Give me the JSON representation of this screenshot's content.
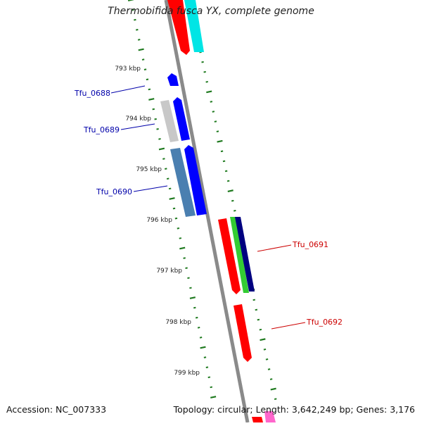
{
  "title": "Thermobifida fusca YX, complete genome",
  "footer": {
    "accession": "Accession: NC_007333",
    "topology": "Topology: circular; Length: 3,642,249 bp; Genes: 3,176"
  },
  "scale_labels": [
    "793 kbp",
    "794 kbp",
    "795 kbp",
    "796 kbp",
    "797 kbp",
    "798 kbp",
    "799 kbp"
  ],
  "gene_labels": [
    {
      "id": "Tfu_0688",
      "color": "#0000aa"
    },
    {
      "id": "Tfu_0689",
      "color": "#0000aa"
    },
    {
      "id": "Tfu_0690",
      "color": "#0000aa"
    },
    {
      "id": "Tfu_0691",
      "color": "#cc0000"
    },
    {
      "id": "Tfu_0692",
      "color": "#cc0000"
    }
  ],
  "colors": {
    "backbone": "#8a8a8a",
    "scale_ticks": "#1f7a1f",
    "gene_blue": "#0000ff",
    "gene_red": "#ff0000",
    "gene_cyan": "#00e5e5",
    "gene_gray": "#c8c8c8",
    "gene_steel": "#4a7fb0",
    "gene_green": "#33cc33",
    "gene_navy": "#000080",
    "gene_pink": "#ff66cc"
  }
}
